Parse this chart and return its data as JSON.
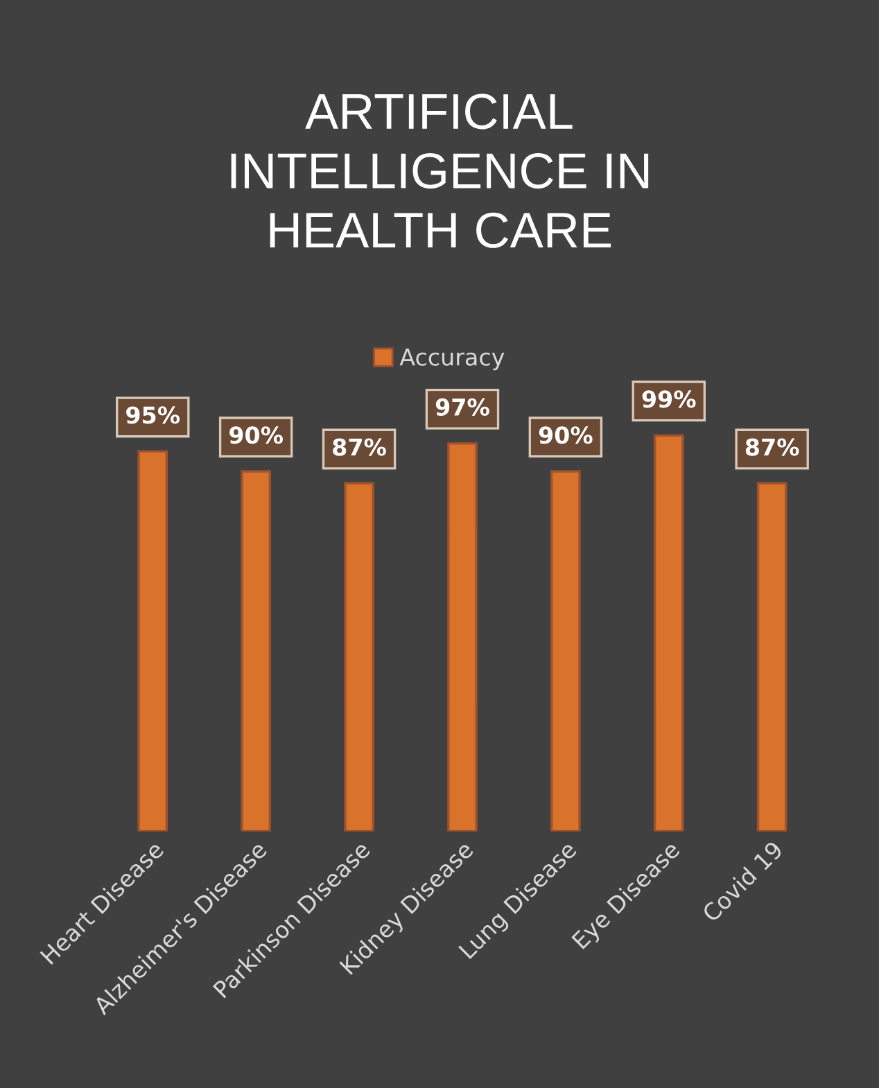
{
  "chart_data": {
    "type": "bar",
    "title": "ARTIFICIAL\nINTELLIGENCE IN\nHEALTH CARE",
    "categories": [
      "Heart Disease",
      "Alzheimer's Disease",
      "Parkinson Disease",
      "Kidney Disease",
      "Lung Disease",
      "Eye Disease",
      "Covid 19"
    ],
    "series": [
      {
        "name": "Accuracy",
        "color": "#d9732b",
        "values": [
          95,
          90,
          87,
          97,
          90,
          99,
          87
        ],
        "value_labels": [
          "95%",
          "90%",
          "87%",
          "97%",
          "90%",
          "99%",
          "87%"
        ]
      }
    ],
    "tick_labels": "x",
    "grid": false,
    "legend": "top"
  }
}
